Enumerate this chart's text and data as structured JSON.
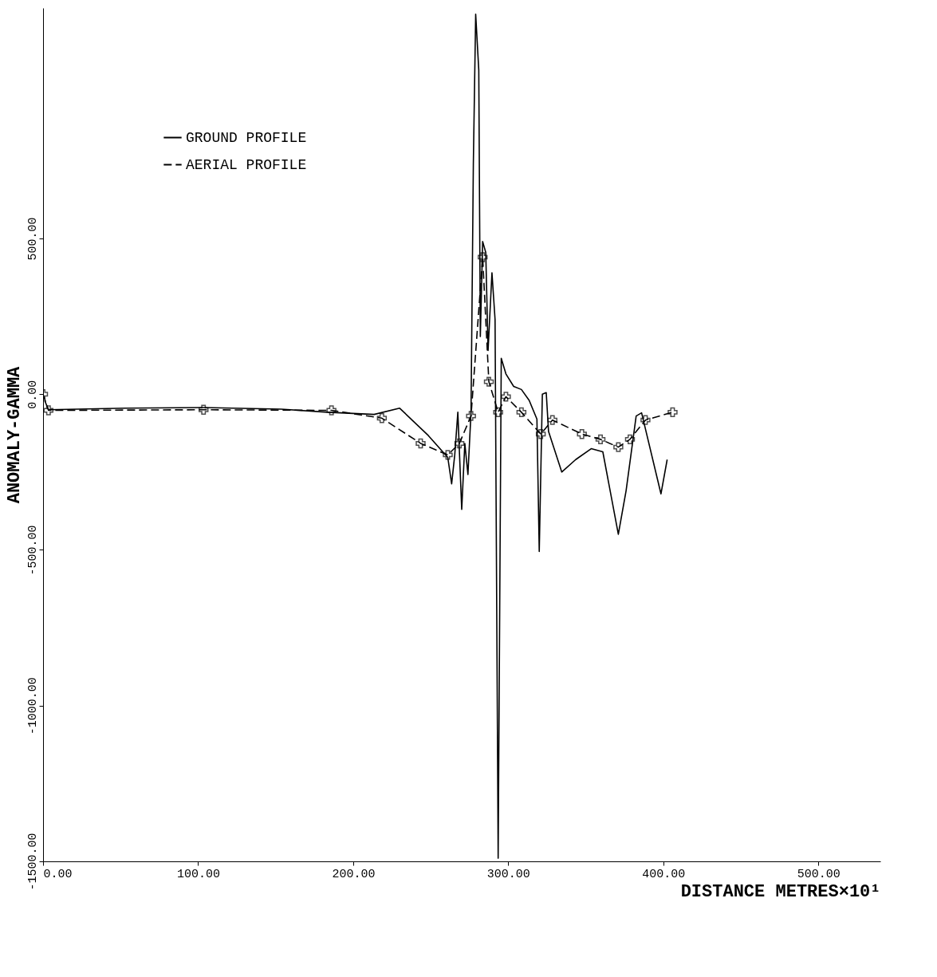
{
  "chart_data": {
    "type": "line",
    "xlabel": "DISTANCE METRES×10¹",
    "ylabel": "ANOMALY-GAMMA",
    "xlim": [
      0,
      540
    ],
    "ylim": [
      -1500,
      1240
    ],
    "xticks": [
      {
        "value": 0,
        "label": "0.00"
      },
      {
        "value": 100,
        "label": "100.00"
      },
      {
        "value": 200,
        "label": "200.00"
      },
      {
        "value": 300,
        "label": "300.00"
      },
      {
        "value": 400,
        "label": "400.00"
      },
      {
        "value": 500,
        "label": "500.00"
      }
    ],
    "yticks": [
      {
        "value": -1500,
        "label": "-1500.00"
      },
      {
        "value": -1000,
        "label": "-1000.00"
      },
      {
        "value": -500,
        "label": "-500.00"
      },
      {
        "value": 0,
        "label": "0.00"
      },
      {
        "value": 500,
        "label": "500.00"
      }
    ],
    "grid": false,
    "legend": "top left",
    "series": [
      {
        "name": "GROUND PROFILE",
        "color": "#000000",
        "line_style": "solid",
        "marker": "none",
        "x": [
          1,
          3.5,
          53.5,
          103.5,
          153.5,
          183.5,
          213.5,
          230,
          248.5,
          261,
          263.5,
          265.5,
          267.5,
          270,
          272,
          274,
          276,
          277.5,
          279,
          281,
          282,
          283.5,
          285.5,
          287,
          289.5,
          291.5,
          293.5,
          295.5,
          298.5,
          303.5,
          308.5,
          313.5,
          318.5,
          320,
          322,
          324.5,
          326,
          334.5,
          343.5,
          353.5,
          361,
          371,
          376,
          382.5,
          386,
          398.5,
          402.5
        ],
        "values": [
          -20,
          -50,
          -45,
          -43,
          -48,
          -58,
          -65,
          -45,
          -133,
          -203,
          -288,
          -195,
          -58,
          -370,
          -158,
          -258,
          -58,
          740,
          1220,
          1040,
          185,
          490,
          455,
          140,
          390,
          240,
          -1490,
          115,
          65,
          25,
          15,
          -20,
          -80,
          -505,
          0,
          5,
          -120,
          -250,
          -210,
          -175,
          -185,
          -450,
          -310,
          -70,
          -60,
          -320,
          -210
        ]
      },
      {
        "name": "AERIAL PROFILE",
        "color": "#000000",
        "line_style": "dashed",
        "marker": "cross",
        "x": [
          0,
          3.5,
          103.5,
          186,
          218.5,
          243.5,
          261,
          268.5,
          276,
          283.5,
          287.5,
          293.5,
          298.5,
          308.5,
          321,
          328.5,
          347.5,
          359.5,
          371,
          378.5,
          388.5,
          406
        ],
        "values": [
          0,
          -52,
          -50,
          -52,
          -77,
          -158,
          -195,
          -158,
          -70,
          440,
          40,
          -58,
          -8,
          -58,
          -128,
          -83,
          -128,
          -145,
          -170,
          -145,
          -83,
          -58
        ]
      }
    ]
  }
}
